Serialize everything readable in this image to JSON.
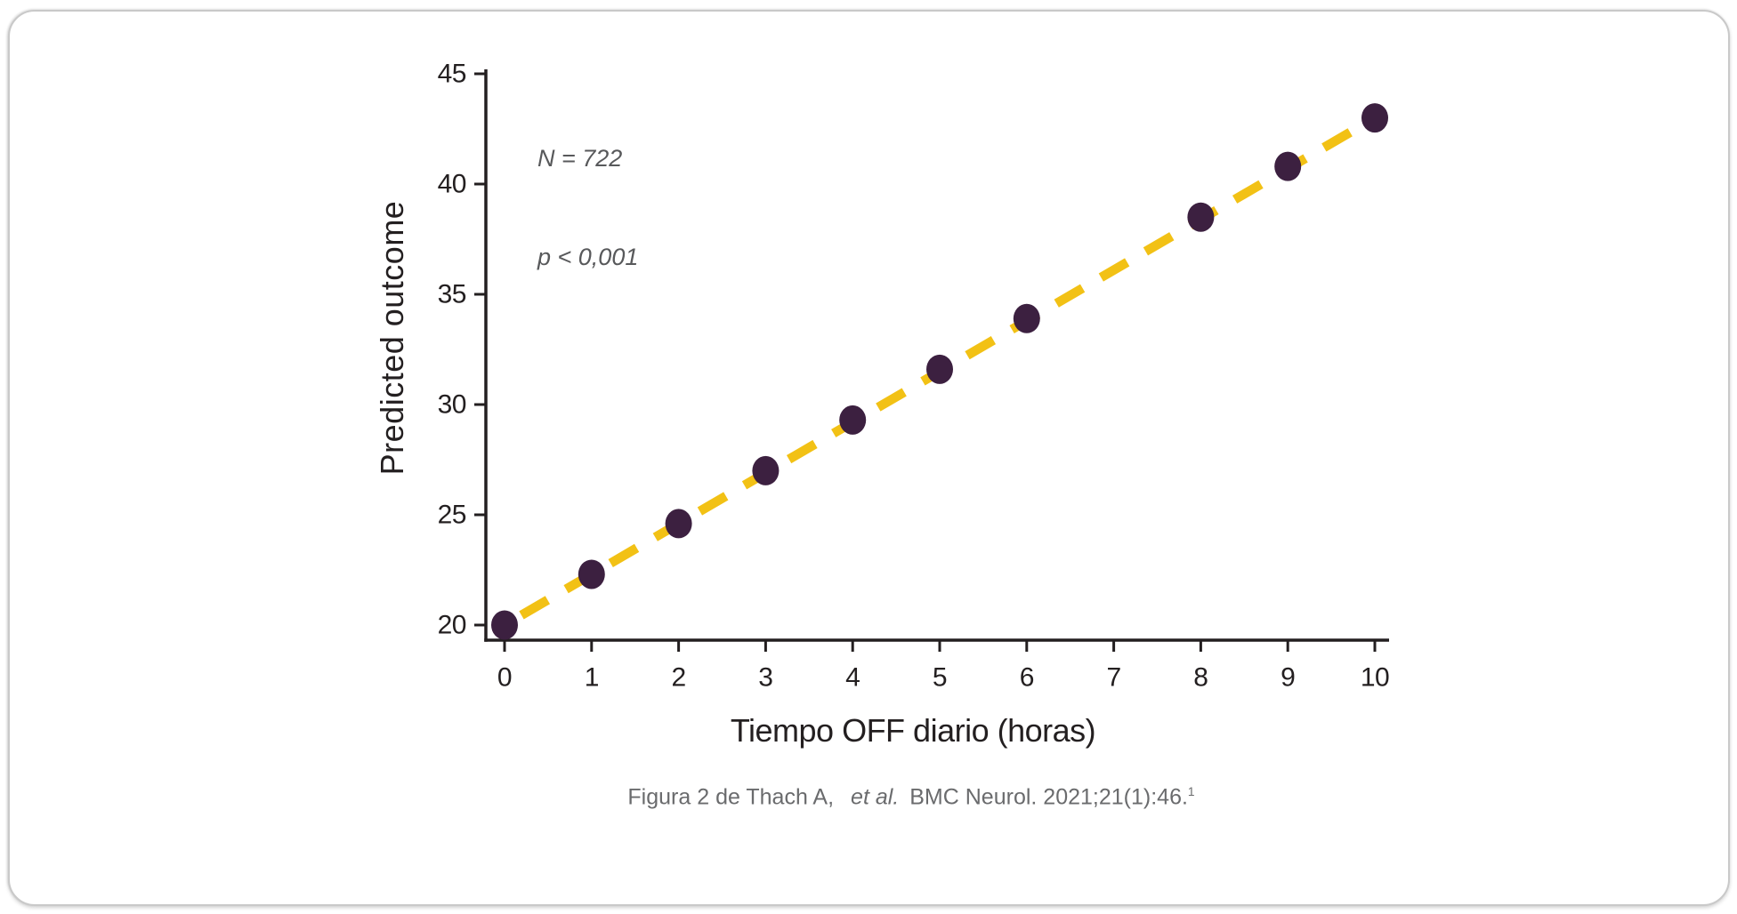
{
  "chart_data": {
    "type": "scatter",
    "title": "",
    "xlabel": "Tiempo OFF diario (horas)",
    "ylabel": "Predicted outcome",
    "annotation": {
      "n": "N = 722",
      "p": "p < 0,001"
    },
    "x": [
      0,
      1,
      2,
      3,
      4,
      5,
      6,
      8,
      9,
      10
    ],
    "y": [
      20.0,
      22.3,
      24.6,
      27.0,
      29.3,
      31.6,
      33.9,
      38.5,
      40.8,
      43.0
    ],
    "xticks": [
      "0",
      "1",
      "2",
      "3",
      "4",
      "5",
      "6",
      "7",
      "8",
      "9",
      "10"
    ],
    "yticks": [
      "20",
      "25",
      "30",
      "35",
      "40",
      "45"
    ],
    "xlim": [
      0,
      10
    ],
    "ylim": [
      20,
      45
    ],
    "grid": false,
    "legend_position": "none",
    "point_color": "#3C2040",
    "axis_color": "#231F20",
    "trendline": {
      "style": "dashed",
      "color": "#F2C115",
      "x_start": 0,
      "y_start": 20.0,
      "x_end": 10,
      "y_end": 43.0
    }
  },
  "caption": {
    "prefix": "Figura 2 de Thach A,",
    "et_al": "et al.",
    "suffix": "BMC Neurol. 2021;21(1):46.",
    "ref_superscript": "1"
  }
}
